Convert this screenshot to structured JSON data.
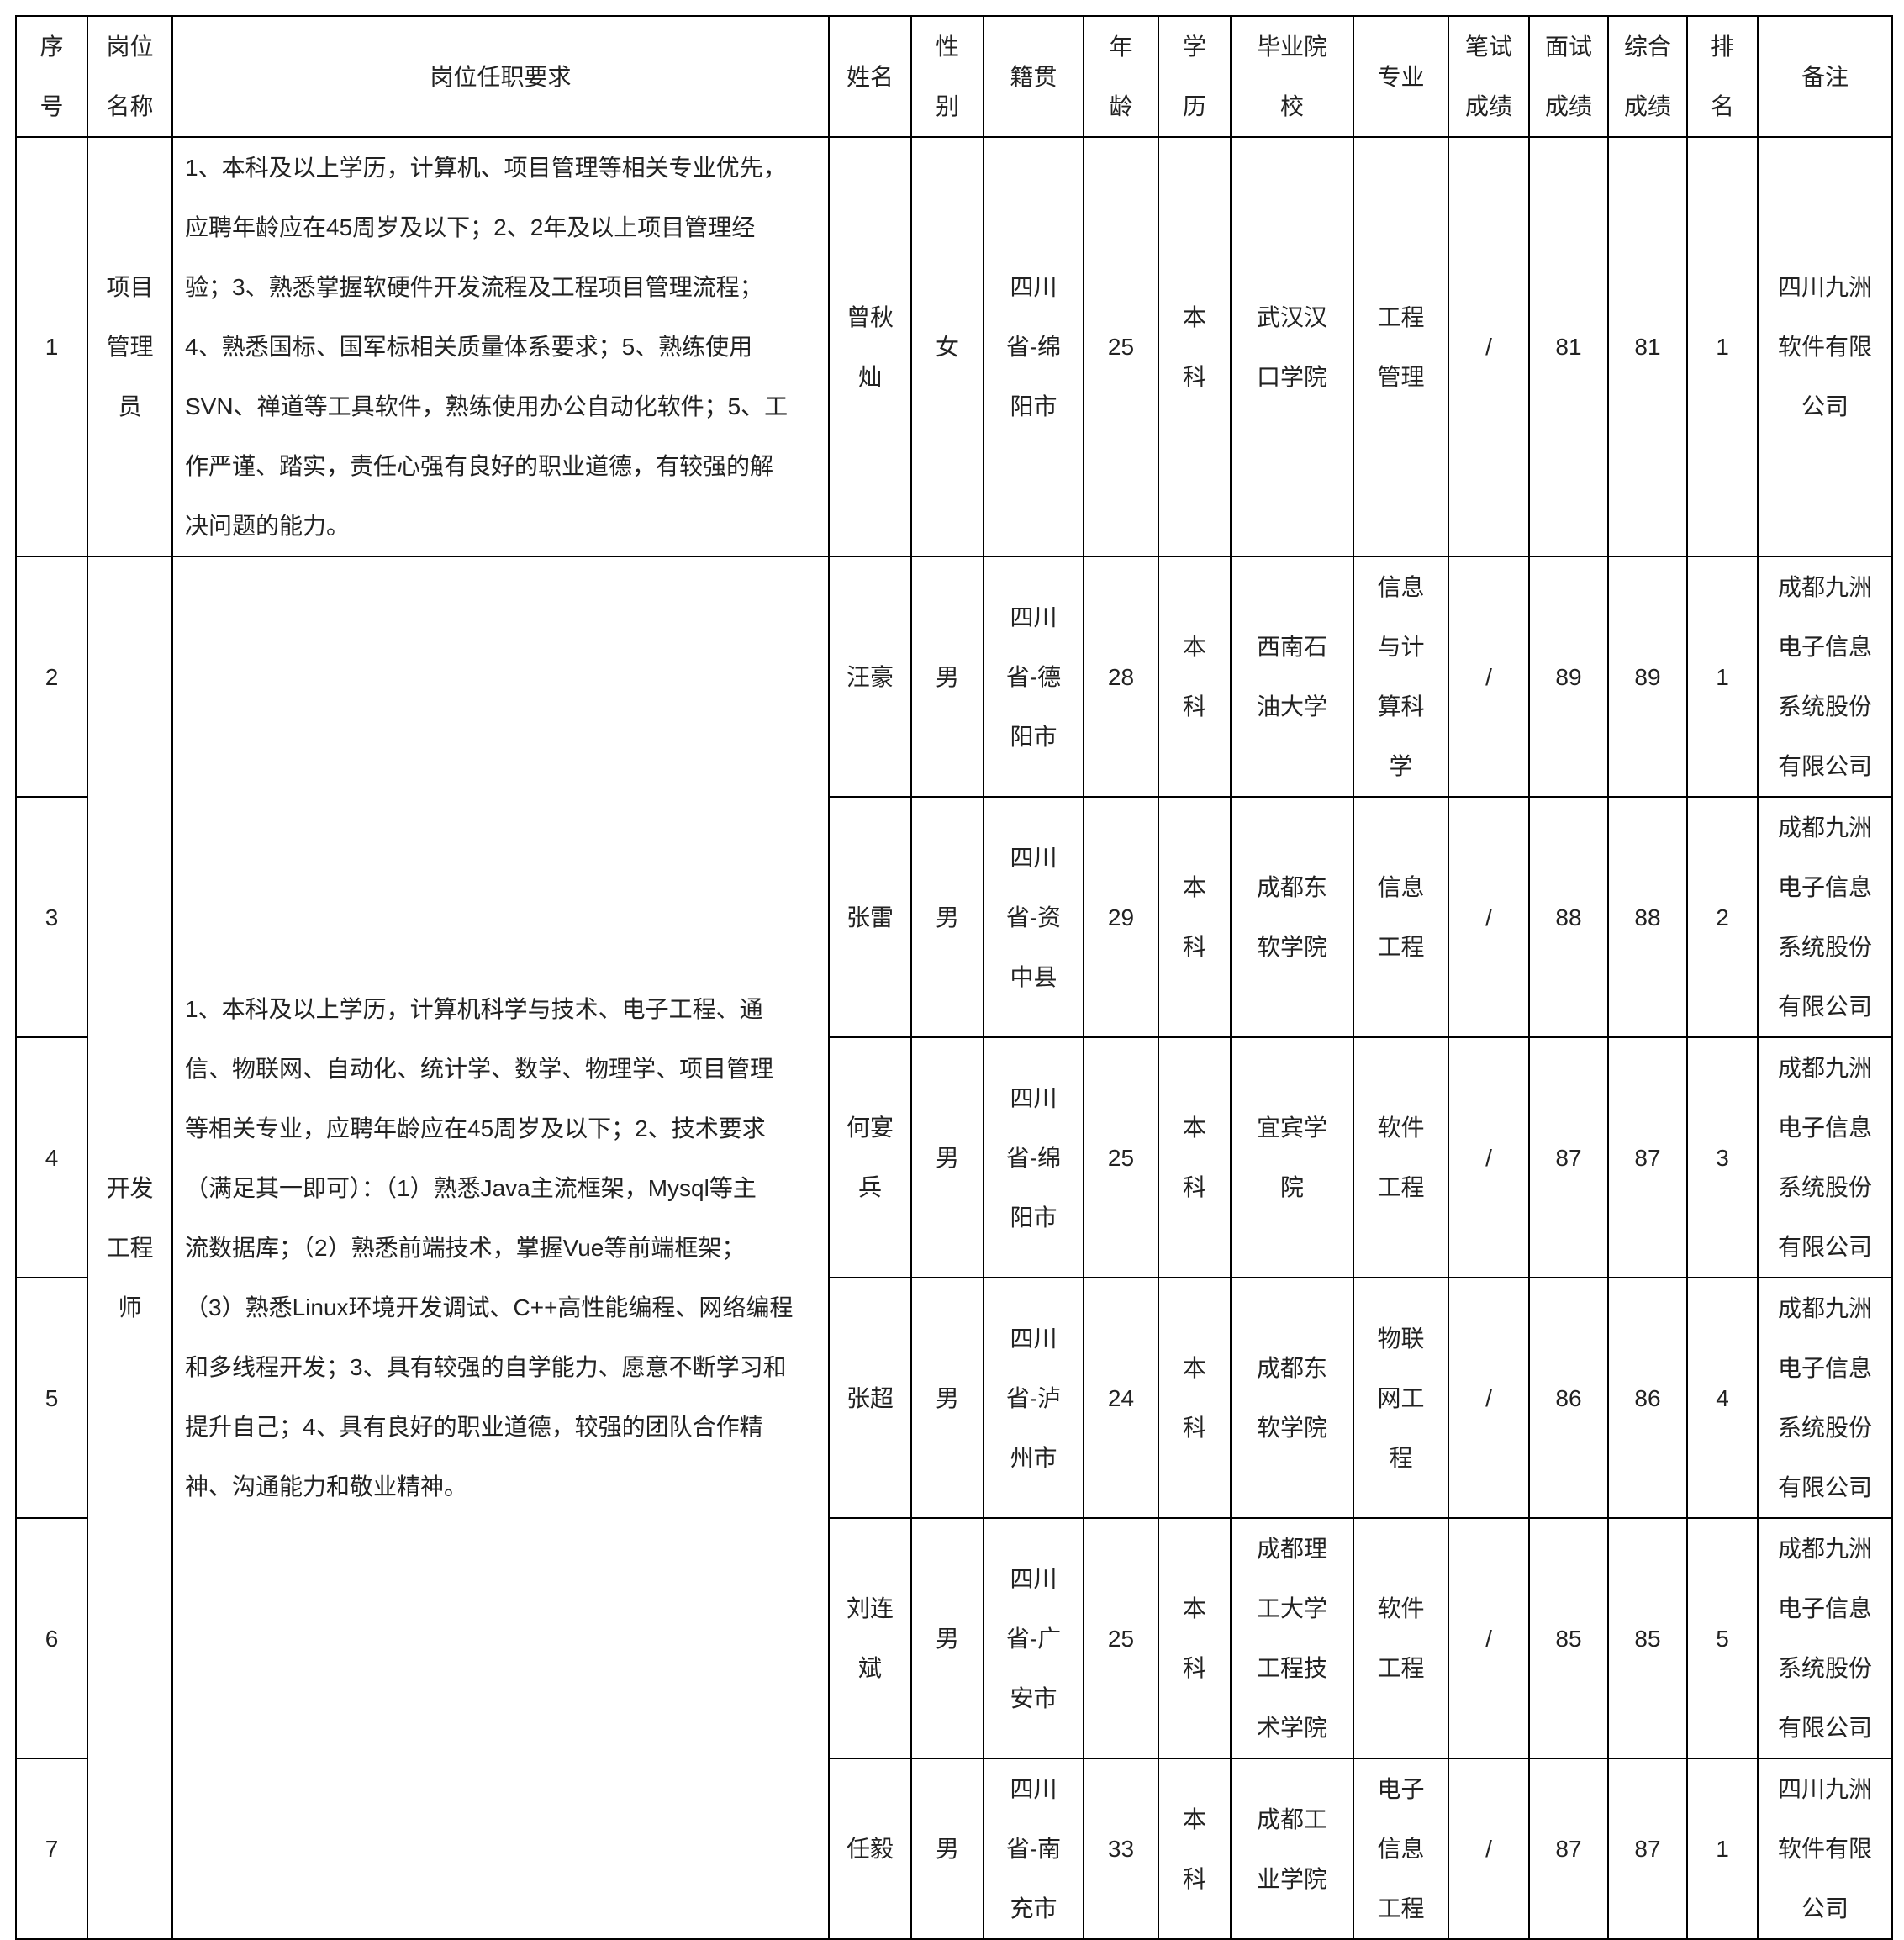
{
  "headers": [
    "序\n号",
    "岗位\n名称",
    "岗位任职要求",
    "姓名",
    "性\n别",
    "籍贯",
    "年\n龄",
    "学\n历",
    "毕业院\n校",
    "专业",
    "笔试\n成绩",
    "面试\n成绩",
    "综合\n成绩",
    "排\n名",
    "备注"
  ],
  "positions": [
    {
      "name": "项目\n管理\n员",
      "requirements": "1、本科及以上学历，计算机、项目管理等相关专业优先，\n应聘年龄应在45周岁及以下；2、2年及以上项目管理经\n验；3、熟悉掌握软硬件开发流程及工程项目管理流程；\n4、熟悉国标、国军标相关质量体系要求；5、熟练使用\nSVN、禅道等工具软件，熟练使用办公自动化软件；5、工\n作严谨、踏实，责任心强有良好的职业道德，有较强的解\n决问题的能力。",
      "rows": 1
    },
    {
      "name": "开发\n工程\n师",
      "requirements": "1、本科及以上学历，计算机科学与技术、电子工程、通\n信、物联网、自动化、统计学、数学、物理学、项目管理\n等相关专业，应聘年龄应在45周岁及以下；2、技术要求\n（满足其一即可）：（1）熟悉Java主流框架，Mysql等主\n流数据库；（2）熟悉前端技术，掌握Vue等前端框架；\n（3）熟悉Linux环境开发调试、C++高性能编程、网络编程\n和多线程开发；3、具有较强的自学能力、愿意不断学习和\n提升自己；4、具有良好的职业道德，较强的团队合作精\n神、沟通能力和敬业精神。",
      "rows": 6
    }
  ],
  "rows": [
    [
      "1",
      "曾秋\n灿",
      "女",
      "四川\n省-绵\n阳市",
      "25",
      "本\n科",
      "武汉汉\n口学院",
      "工程\n管理",
      "/",
      "81",
      "81",
      "1",
      "四川九洲\n软件有限\n公司"
    ],
    [
      "2",
      "汪豪",
      "男",
      "四川\n省-德\n阳市",
      "28",
      "本\n科",
      "西南石\n油大学",
      "信息\n与计\n算科\n学",
      "/",
      "89",
      "89",
      "1",
      "成都九洲\n电子信息\n系统股份\n有限公司"
    ],
    [
      "3",
      "张雷",
      "男",
      "四川\n省-资\n中县",
      "29",
      "本\n科",
      "成都东\n软学院",
      "信息\n工程",
      "/",
      "88",
      "88",
      "2",
      "成都九洲\n电子信息\n系统股份\n有限公司"
    ],
    [
      "4",
      "何宴\n兵",
      "男",
      "四川\n省-绵\n阳市",
      "25",
      "本\n科",
      "宜宾学\n院",
      "软件\n工程",
      "/",
      "87",
      "87",
      "3",
      "成都九洲\n电子信息\n系统股份\n有限公司"
    ],
    [
      "5",
      "张超",
      "男",
      "四川\n省-泸\n州市",
      "24",
      "本\n科",
      "成都东\n软学院",
      "物联\n网工\n程",
      "/",
      "86",
      "86",
      "4",
      "成都九洲\n电子信息\n系统股份\n有限公司"
    ],
    [
      "6",
      "刘连\n斌",
      "男",
      "四川\n省-广\n安市",
      "25",
      "本\n科",
      "成都理\n工大学\n工程技\n术学院",
      "软件\n工程",
      "/",
      "85",
      "85",
      "5",
      "成都九洲\n电子信息\n系统股份\n有限公司"
    ],
    [
      "7",
      "任毅",
      "男",
      "四川\n省-南\n充市",
      "33",
      "本\n科",
      "成都工\n业学院",
      "电子\n信息\n工程",
      "/",
      "87",
      "87",
      "1",
      "四川九洲\n软件有限\n公司"
    ]
  ]
}
